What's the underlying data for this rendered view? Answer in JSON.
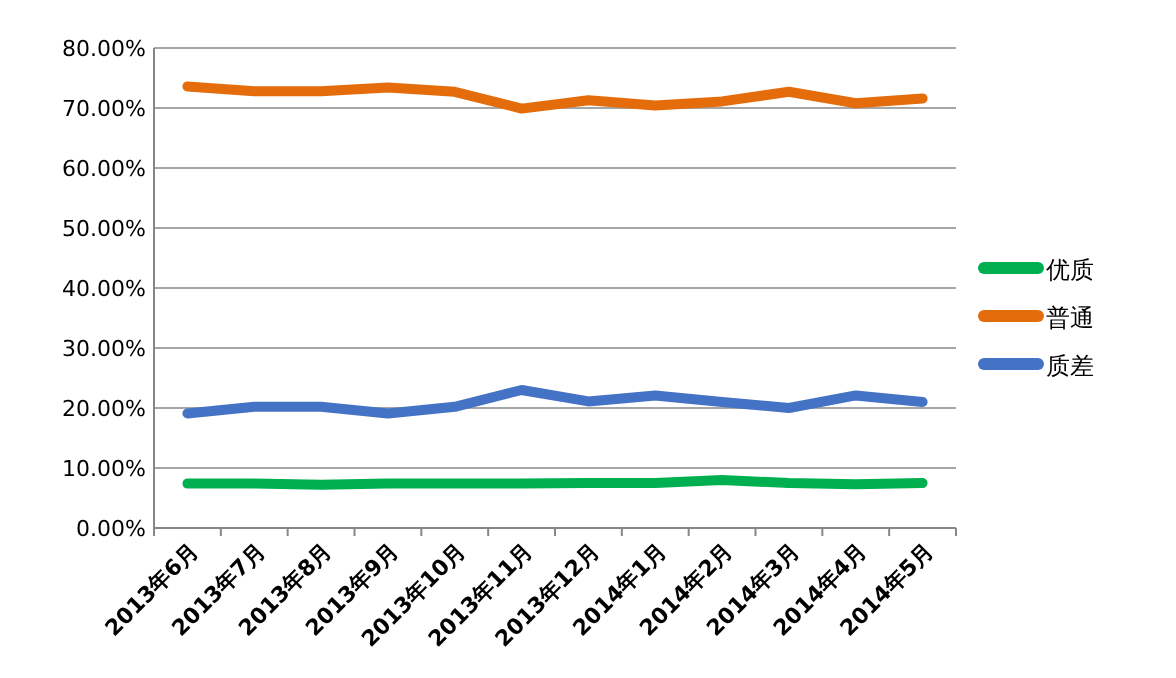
{
  "chart_data": {
    "type": "line",
    "categories": [
      "2013年6月",
      "2013年7月",
      "2013年8月",
      "2013年9月",
      "2013年10月",
      "2013年11月",
      "2013年12月",
      "2014年1月",
      "2014年2月",
      "2014年3月",
      "2014年4月",
      "2014年5月"
    ],
    "series": [
      {
        "name": "优质",
        "color": "#00b050",
        "values": [
          7.4,
          7.4,
          7.2,
          7.4,
          7.4,
          7.4,
          7.5,
          7.5,
          8.0,
          7.5,
          7.3,
          7.5
        ]
      },
      {
        "name": "普通",
        "color": "#e46c0a",
        "values": [
          73.6,
          72.8,
          72.8,
          73.4,
          72.7,
          69.9,
          71.3,
          70.4,
          71.1,
          72.7,
          70.8,
          71.6
        ]
      },
      {
        "name": "质差",
        "color": "#4472c4",
        "values": [
          19.1,
          20.2,
          20.2,
          19.1,
          20.2,
          23.0,
          21.1,
          22.1,
          21.0,
          20.0,
          22.1,
          21.0
        ]
      }
    ],
    "ylim": [
      0,
      80
    ],
    "yticks": [
      {
        "value": 0,
        "label": "0.00%"
      },
      {
        "value": 10,
        "label": "10.00%"
      },
      {
        "value": 20,
        "label": "20.00%"
      },
      {
        "value": 30,
        "label": "30.00%"
      },
      {
        "value": 40,
        "label": "40.00%"
      },
      {
        "value": 50,
        "label": "50.00%"
      },
      {
        "value": 60,
        "label": "60.00%"
      },
      {
        "value": 70,
        "label": "70.00%"
      },
      {
        "value": 80,
        "label": "80.00%"
      }
    ],
    "grid": "y",
    "legend": "right",
    "marker": "none",
    "line_style": "solid"
  }
}
